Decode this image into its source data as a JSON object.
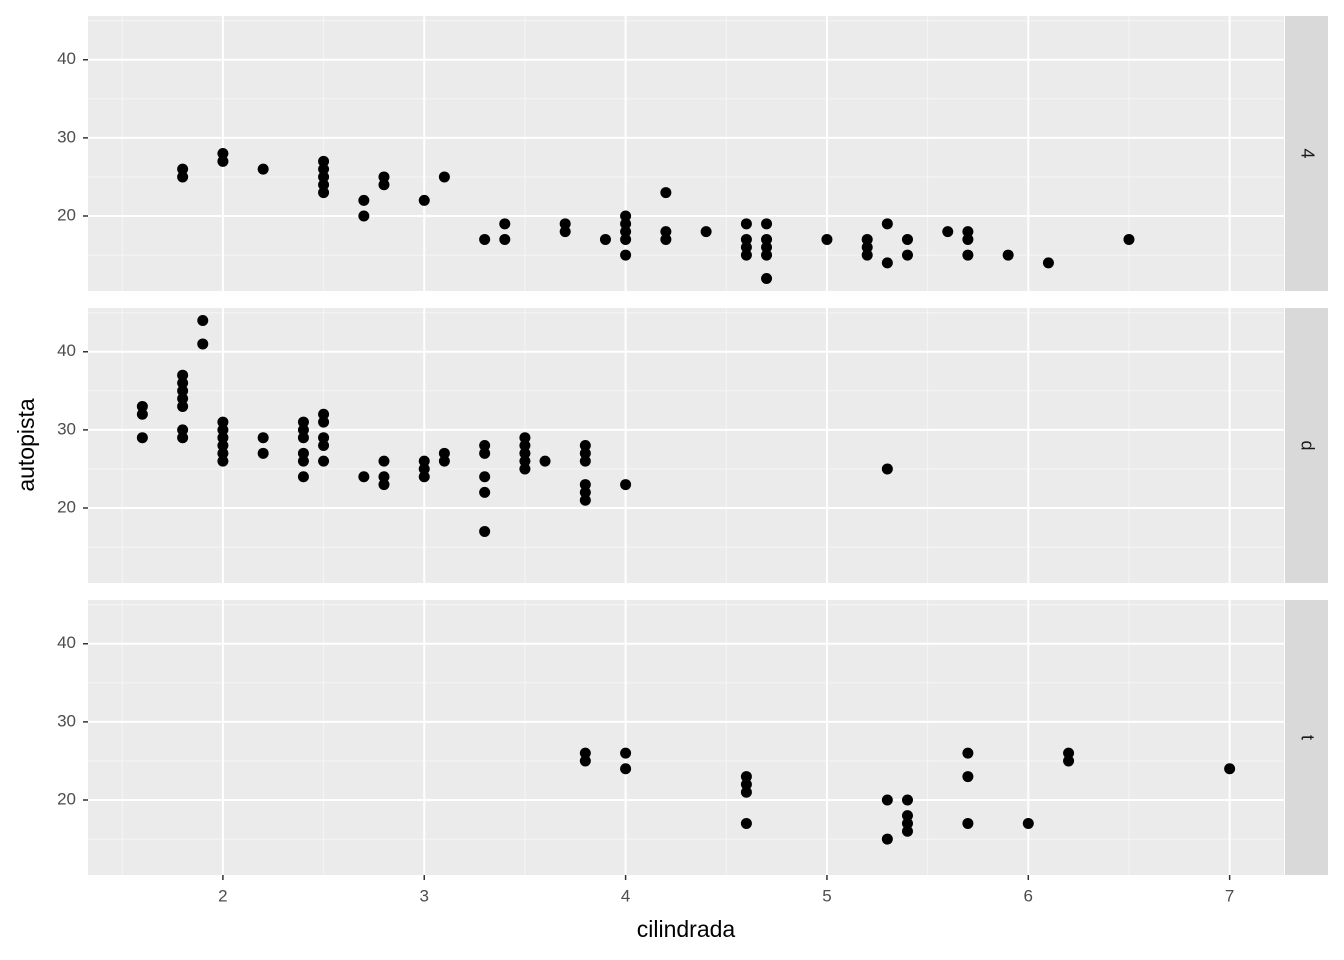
{
  "chart_data": {
    "type": "scatter",
    "x_label": "cilindrada",
    "y_label": "autopista",
    "xlim": [
      1.33,
      7.27
    ],
    "xticks": [
      2,
      3,
      4,
      5,
      6,
      7
    ],
    "ylim": [
      10.4,
      45.6
    ],
    "yticks": [
      20,
      30,
      40
    ],
    "grid": true,
    "color": "#000000",
    "series": [
      {
        "name": "4",
        "x": [
          1.8,
          1.8,
          2.0,
          2.0,
          2.2,
          2.5,
          2.5,
          2.5,
          2.5,
          2.5,
          2.7,
          2.7,
          2.8,
          2.8,
          3.0,
          3.1,
          3.3,
          3.4,
          3.4,
          3.7,
          3.7,
          3.9,
          4.0,
          4.0,
          4.0,
          4.0,
          4.0,
          4.2,
          4.2,
          4.2,
          4.4,
          4.6,
          4.6,
          4.6,
          4.6,
          4.7,
          4.7,
          4.7,
          4.7,
          4.7,
          5.0,
          5.2,
          5.2,
          5.2,
          5.3,
          5.3,
          5.4,
          5.4,
          5.6,
          5.7,
          5.7,
          5.7,
          5.9,
          6.1,
          6.5
        ],
        "values": [
          26,
          25,
          28,
          27,
          26,
          27,
          26,
          25,
          24,
          23,
          22,
          20,
          25,
          24,
          22,
          25,
          17,
          19,
          17,
          19,
          18,
          17,
          20,
          19,
          18,
          17,
          15,
          23,
          18,
          17,
          18,
          19,
          17,
          16,
          15,
          19,
          17,
          16,
          15,
          12,
          17,
          17,
          16,
          15,
          19,
          14,
          17,
          15,
          18,
          18,
          17,
          15,
          15,
          14,
          17
        ]
      },
      {
        "name": "d",
        "x": [
          1.6,
          1.6,
          1.6,
          1.8,
          1.8,
          1.8,
          1.8,
          1.8,
          1.8,
          1.8,
          1.9,
          1.9,
          2.0,
          2.0,
          2.0,
          2.0,
          2.0,
          2.0,
          2.2,
          2.2,
          2.4,
          2.4,
          2.4,
          2.4,
          2.4,
          2.4,
          2.5,
          2.5,
          2.5,
          2.5,
          2.5,
          2.7,
          2.8,
          2.8,
          2.8,
          3.0,
          3.0,
          3.0,
          3.1,
          3.1,
          3.3,
          3.3,
          3.3,
          3.3,
          3.3,
          3.5,
          3.5,
          3.5,
          3.5,
          3.5,
          3.6,
          3.8,
          3.8,
          3.8,
          3.8,
          3.8,
          3.8,
          4.0,
          5.3
        ],
        "values": [
          33,
          32,
          29,
          37,
          36,
          35,
          34,
          33,
          30,
          29,
          44,
          41,
          31,
          30,
          29,
          28,
          27,
          26,
          29,
          27,
          31,
          30,
          29,
          27,
          26,
          24,
          32,
          31,
          29,
          28,
          26,
          24,
          26,
          24,
          23,
          26,
          25,
          24,
          27,
          26,
          28,
          27,
          24,
          22,
          17,
          29,
          28,
          27,
          26,
          25,
          26,
          28,
          27,
          26,
          23,
          22,
          21,
          23,
          25
        ]
      },
      {
        "name": "t",
        "x": [
          3.8,
          3.8,
          4.0,
          4.0,
          4.6,
          4.6,
          4.6,
          4.6,
          5.3,
          5.3,
          5.4,
          5.4,
          5.4,
          5.4,
          5.7,
          5.7,
          5.7,
          6.0,
          6.2,
          6.2,
          7.0
        ],
        "values": [
          26,
          25,
          26,
          24,
          23,
          22,
          21,
          17,
          20,
          15,
          20,
          18,
          17,
          16,
          26,
          23,
          17,
          17,
          26,
          25,
          24
        ]
      }
    ]
  }
}
